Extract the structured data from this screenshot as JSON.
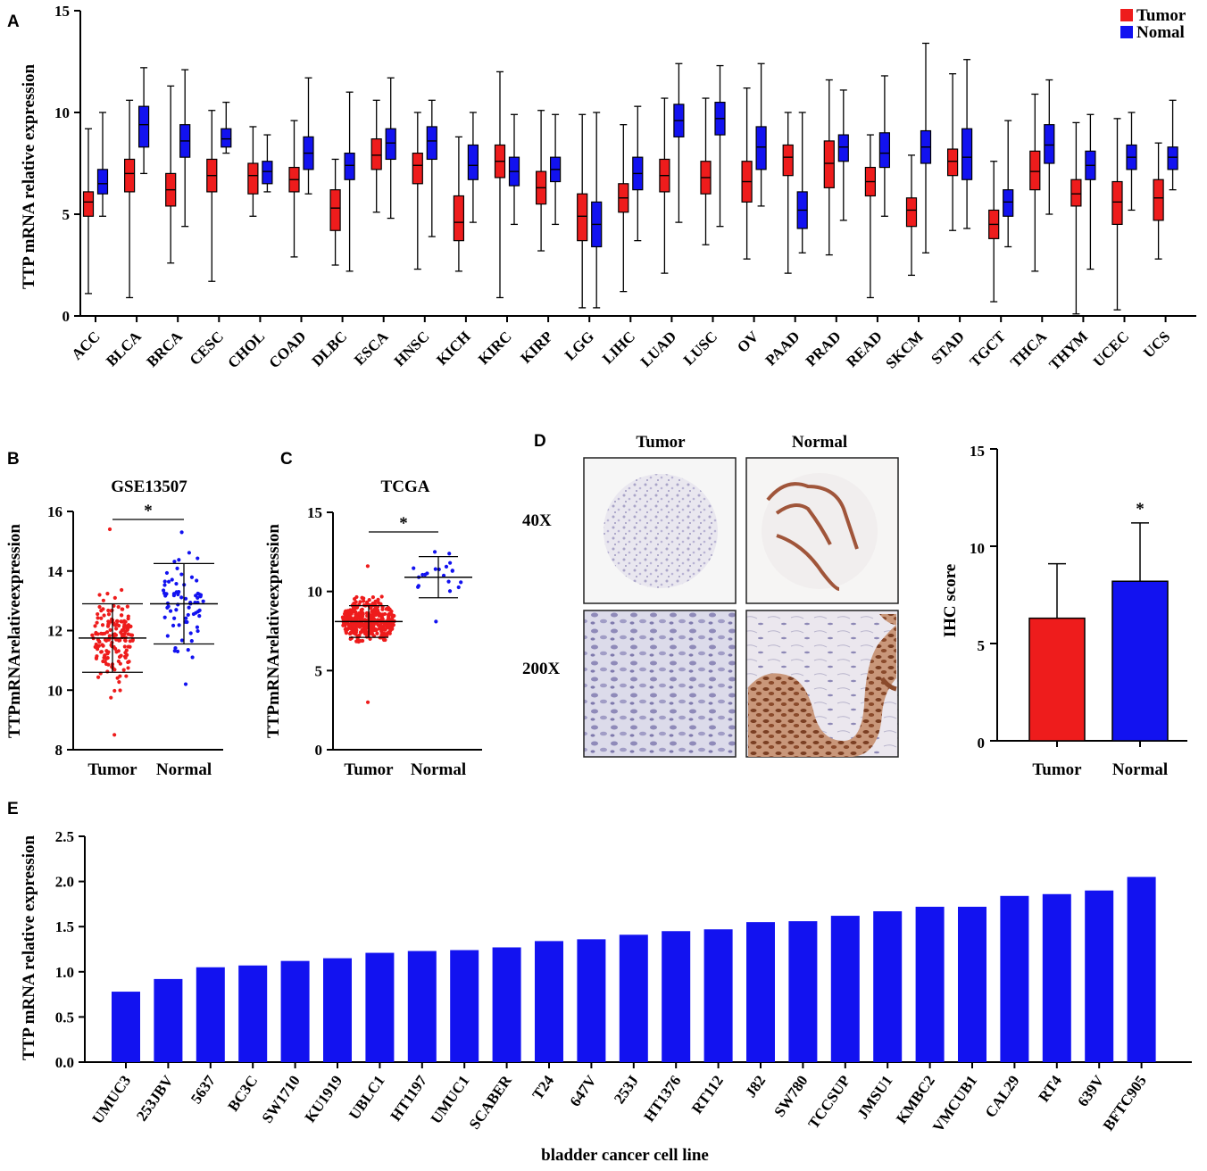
{
  "colors": {
    "tumor": "#ee1c1c",
    "normal": "#1212f0"
  },
  "panels": {
    "A": {
      "label": "A",
      "ylabel": "TTP mRNA relative expression",
      "ylim": [
        0,
        15
      ],
      "yticks": [
        "0",
        "5",
        "10",
        "15"
      ],
      "legend": {
        "tumor": "Tumor",
        "normal": "Nomal"
      }
    },
    "B": {
      "label": "B",
      "title": "GSE13507",
      "ylabel": "TTPmRNArelativeexpression",
      "ylim": [
        8,
        16
      ],
      "yticks": [
        "8",
        "10",
        "12",
        "14",
        "16"
      ],
      "xticks": [
        "Tumor",
        "Normal"
      ],
      "sig": "*"
    },
    "C": {
      "label": "C",
      "title": "TCGA",
      "ylabel": "TTPmRNArelativeexpression",
      "ylim": [
        0,
        15
      ],
      "yticks": [
        "0",
        "5",
        "10",
        "15"
      ],
      "xticks": [
        "Tumor",
        "Normal"
      ],
      "sig": "*"
    },
    "D": {
      "label": "D",
      "col_tumor": "Tumor",
      "col_normal": "Normal",
      "row_40": "40X",
      "row_200": "200X",
      "ylabel": "IHC score",
      "ylim": [
        0,
        15
      ],
      "yticks": [
        "0",
        "5",
        "10",
        "15"
      ],
      "xticks": [
        "Tumor",
        "Normal"
      ],
      "sig": "*"
    },
    "E": {
      "label": "E",
      "ylabel": "TTP mRNA relative expression",
      "xlabel": "bladder cancer cell line",
      "ylim": [
        0,
        2.5
      ],
      "yticks": [
        "0.0",
        "0.5",
        "1.0",
        "1.5",
        "2.0",
        "2.5"
      ]
    }
  },
  "chart_data": [
    {
      "panel": "A",
      "type": "box",
      "categories": [
        "ACC",
        "BLCA",
        "BRCA",
        "CESC",
        "CHOL",
        "COAD",
        "DLBC",
        "ESCA",
        "HNSC",
        "KICH",
        "KIRC",
        "KIRP",
        "LGG",
        "LIHC",
        "LUAD",
        "LUSC",
        "OV",
        "PAAD",
        "PRAD",
        "READ",
        "SKCM",
        "STAD",
        "TGCT",
        "THCA",
        "THYM",
        "UCEC",
        "UCS"
      ],
      "series": [
        {
          "name": "Tumor",
          "stats": [
            [
              1.1,
              4.9,
              5.6,
              6.1,
              9.2
            ],
            [
              0.9,
              6.1,
              7.0,
              7.7,
              10.6
            ],
            [
              2.6,
              5.4,
              6.2,
              7.0,
              11.3
            ],
            [
              1.7,
              6.1,
              6.9,
              7.7,
              10.1
            ],
            [
              4.9,
              6.0,
              6.9,
              7.5,
              9.3
            ],
            [
              2.9,
              6.1,
              6.7,
              7.3,
              9.6
            ],
            [
              2.5,
              4.2,
              5.3,
              6.2,
              7.7
            ],
            [
              5.1,
              7.2,
              7.9,
              8.7,
              10.6
            ],
            [
              2.3,
              6.5,
              7.4,
              8.0,
              10.0
            ],
            [
              2.2,
              3.7,
              4.6,
              5.9,
              8.8
            ],
            [
              0.9,
              6.8,
              7.6,
              8.4,
              12.0
            ],
            [
              3.2,
              5.5,
              6.3,
              7.1,
              10.1
            ],
            [
              0.4,
              3.7,
              4.9,
              6.0,
              9.9
            ],
            [
              1.2,
              5.1,
              5.8,
              6.5,
              9.4
            ],
            [
              2.1,
              6.1,
              6.9,
              7.7,
              10.7
            ],
            [
              3.5,
              6.0,
              6.8,
              7.6,
              10.7
            ],
            [
              2.8,
              5.6,
              6.6,
              7.6,
              11.2
            ],
            [
              2.1,
              6.9,
              7.8,
              8.4,
              10.0
            ],
            [
              3.0,
              6.3,
              7.5,
              8.6,
              11.6
            ],
            [
              0.9,
              5.9,
              6.6,
              7.3,
              8.9
            ],
            [
              2.0,
              4.4,
              5.2,
              5.8,
              7.9
            ],
            [
              4.2,
              6.9,
              7.6,
              8.2,
              11.9
            ],
            [
              0.7,
              3.8,
              4.5,
              5.2,
              7.6
            ],
            [
              2.2,
              6.2,
              7.1,
              8.1,
              10.9
            ],
            [
              0.1,
              5.4,
              6.0,
              6.7,
              9.5
            ],
            [
              0.3,
              4.5,
              5.6,
              6.6,
              9.7
            ],
            [
              2.8,
              4.7,
              5.8,
              6.7,
              8.5
            ]
          ]
        },
        {
          "name": "Nomal",
          "stats": [
            [
              4.9,
              6.0,
              6.5,
              7.2,
              10.0
            ],
            [
              7.0,
              8.3,
              9.4,
              10.3,
              12.2
            ],
            [
              4.4,
              7.8,
              8.6,
              9.4,
              12.1
            ],
            [
              8.0,
              8.3,
              8.7,
              9.2,
              10.5
            ],
            [
              6.1,
              6.5,
              7.1,
              7.6,
              8.9
            ],
            [
              6.0,
              7.2,
              8.0,
              8.8,
              11.7
            ],
            [
              2.2,
              6.7,
              7.4,
              8.0,
              11.0
            ],
            [
              4.8,
              7.7,
              8.5,
              9.2,
              11.7
            ],
            [
              3.9,
              7.7,
              8.6,
              9.3,
              10.6
            ],
            [
              4.6,
              6.7,
              7.4,
              8.4,
              10.0
            ],
            [
              4.5,
              6.4,
              7.1,
              7.8,
              9.9
            ],
            [
              4.5,
              6.6,
              7.2,
              7.8,
              9.9
            ],
            [
              0.4,
              3.4,
              4.5,
              5.6,
              10.0
            ],
            [
              3.7,
              6.2,
              7.0,
              7.8,
              10.3
            ],
            [
              4.6,
              8.8,
              9.6,
              10.4,
              12.4
            ],
            [
              4.4,
              8.9,
              9.7,
              10.5,
              12.3
            ],
            [
              5.4,
              7.2,
              8.3,
              9.3,
              12.4
            ],
            [
              3.1,
              4.3,
              5.2,
              6.1,
              10.0
            ],
            [
              4.7,
              7.6,
              8.3,
              8.9,
              11.1
            ],
            [
              4.9,
              7.3,
              8.0,
              9.0,
              11.8
            ],
            [
              3.1,
              7.5,
              8.3,
              9.1,
              13.4
            ],
            [
              4.3,
              6.7,
              7.8,
              9.2,
              12.6
            ],
            [
              3.4,
              4.9,
              5.6,
              6.2,
              9.6
            ],
            [
              5.0,
              7.5,
              8.4,
              9.4,
              11.6
            ],
            [
              2.3,
              6.7,
              7.4,
              8.1,
              9.9
            ],
            [
              5.2,
              7.2,
              7.8,
              8.4,
              10.0
            ],
            [
              6.2,
              7.2,
              7.8,
              8.3,
              10.6
            ]
          ]
        }
      ]
    },
    {
      "panel": "B",
      "type": "scatter",
      "title": "GSE13507",
      "categories": [
        "Tumor",
        "Normal"
      ],
      "series": [
        {
          "name": "Tumor",
          "n": 165,
          "mean": 11.75,
          "sd": 1.15,
          "min": 8.5,
          "max": 15.4
        },
        {
          "name": "Normal",
          "n": 68,
          "mean": 12.9,
          "sd": 1.35,
          "min": 10.2,
          "max": 15.3
        }
      ],
      "ylim": [
        8,
        16
      ]
    },
    {
      "panel": "C",
      "type": "scatter",
      "title": "TCGA",
      "categories": [
        "Tumor",
        "Normal"
      ],
      "series": [
        {
          "name": "Tumor",
          "n": 410,
          "mean": 8.1,
          "sd": 1.0,
          "min": 3.0,
          "max": 11.6
        },
        {
          "name": "Normal",
          "n": 19,
          "mean": 10.9,
          "sd": 1.3,
          "min": 8.1,
          "max": 12.5
        }
      ],
      "ylim": [
        0,
        15
      ]
    },
    {
      "panel": "D",
      "type": "bar",
      "categories": [
        "Tumor",
        "Normal"
      ],
      "values": [
        6.3,
        8.2
      ],
      "errors": [
        2.8,
        3.0
      ],
      "ylabel": "IHC score",
      "ylim": [
        0,
        15
      ]
    },
    {
      "panel": "E",
      "type": "bar",
      "categories": [
        "UMUC3",
        "253JBV",
        "5637",
        "BC3C",
        "SW1710",
        "KU1919",
        "UBLC1",
        "HT1197",
        "UMUC1",
        "SCABER",
        "T24",
        "647V",
        "253J",
        "HT1376",
        "RT112",
        "J82",
        "SW780",
        "TCCSUP",
        "JMSU1",
        "KMBC2",
        "VMCUB1",
        "CAL29",
        "RT4",
        "639V",
        "BFTC905"
      ],
      "values": [
        0.78,
        0.92,
        1.05,
        1.07,
        1.12,
        1.15,
        1.21,
        1.23,
        1.24,
        1.27,
        1.34,
        1.36,
        1.41,
        1.45,
        1.47,
        1.55,
        1.56,
        1.62,
        1.67,
        1.72,
        1.72,
        1.84,
        1.86,
        1.9,
        2.05
      ],
      "xlabel": "bladder cancer cell line",
      "ylabel": "TTP mRNA relative expression",
      "ylim": [
        0,
        2.5
      ]
    }
  ]
}
